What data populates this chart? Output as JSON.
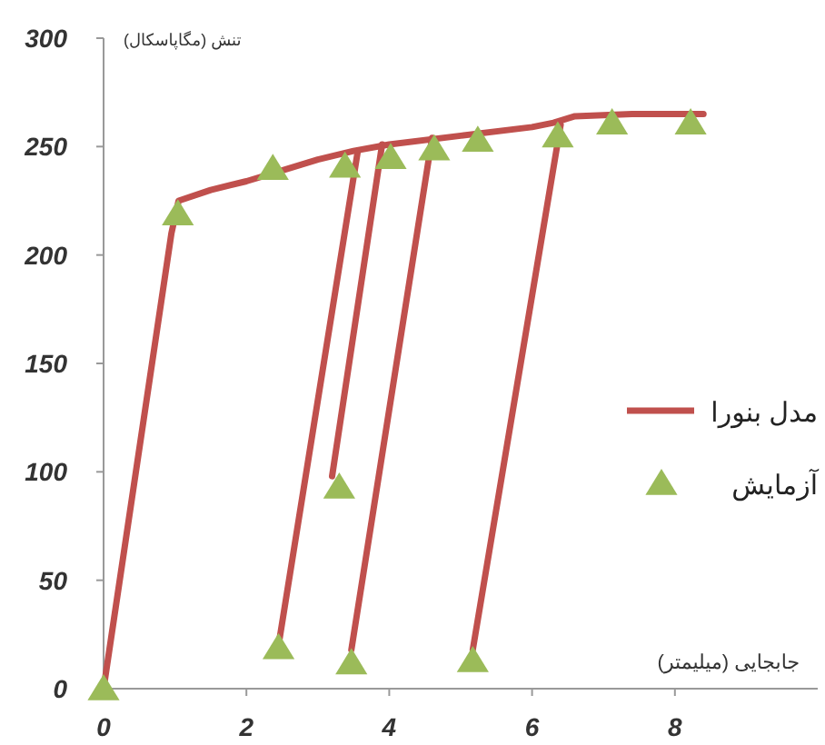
{
  "chart_data": {
    "type": "line",
    "xlabel": "جابجایی (میلیمتر)",
    "ylabel": "تنش (مگاپاسکال)",
    "xlim": [
      0,
      10
    ],
    "xticks": [
      0,
      2,
      4,
      6,
      8
    ],
    "ylim": [
      0,
      300
    ],
    "yticks": [
      0,
      50,
      100,
      150,
      200,
      250,
      300
    ],
    "grid": false,
    "legend": "right",
    "series": [
      {
        "name": "مدل بنورا",
        "color": "#c0504d",
        "marker": "none",
        "x": [
          0,
          0.95,
          1.05,
          1.5,
          2,
          2.5,
          3,
          3.5,
          4,
          5,
          6,
          6.3,
          6.6,
          7.4,
          8.4
        ],
        "values": [
          0,
          210,
          225,
          230,
          234,
          239,
          244,
          248,
          251,
          255,
          259,
          261,
          264,
          265,
          265
        ]
      },
      {
        "color": "#c0504d",
        "marker": "none",
        "x": [
          2.45,
          3.56
        ],
        "values": [
          20,
          248
        ]
      },
      {
        "color": "#c0504d",
        "marker": "none",
        "x": [
          3.2,
          3.9
        ],
        "values": [
          98,
          251
        ]
      },
      {
        "color": "#c0504d",
        "marker": "none",
        "x": [
          3.47,
          4.6
        ],
        "values": [
          18,
          254
        ]
      },
      {
        "color": "#c0504d",
        "marker": "none",
        "x": [
          5.17,
          6.4
        ],
        "values": [
          18,
          260
        ]
      },
      {
        "name": "آزمایش",
        "type": "scatter",
        "color": "#9bbb59",
        "marker": "triangle",
        "x": [
          0,
          1.04,
          2.37,
          3.38,
          4.02,
          4.63,
          5.24,
          6.36,
          7.12,
          8.22,
          2.45,
          3.3,
          3.47,
          5.17
        ],
        "values": [
          0,
          219,
          240,
          241,
          245,
          249,
          253,
          255,
          261,
          261,
          19,
          93,
          12,
          13
        ]
      }
    ]
  }
}
